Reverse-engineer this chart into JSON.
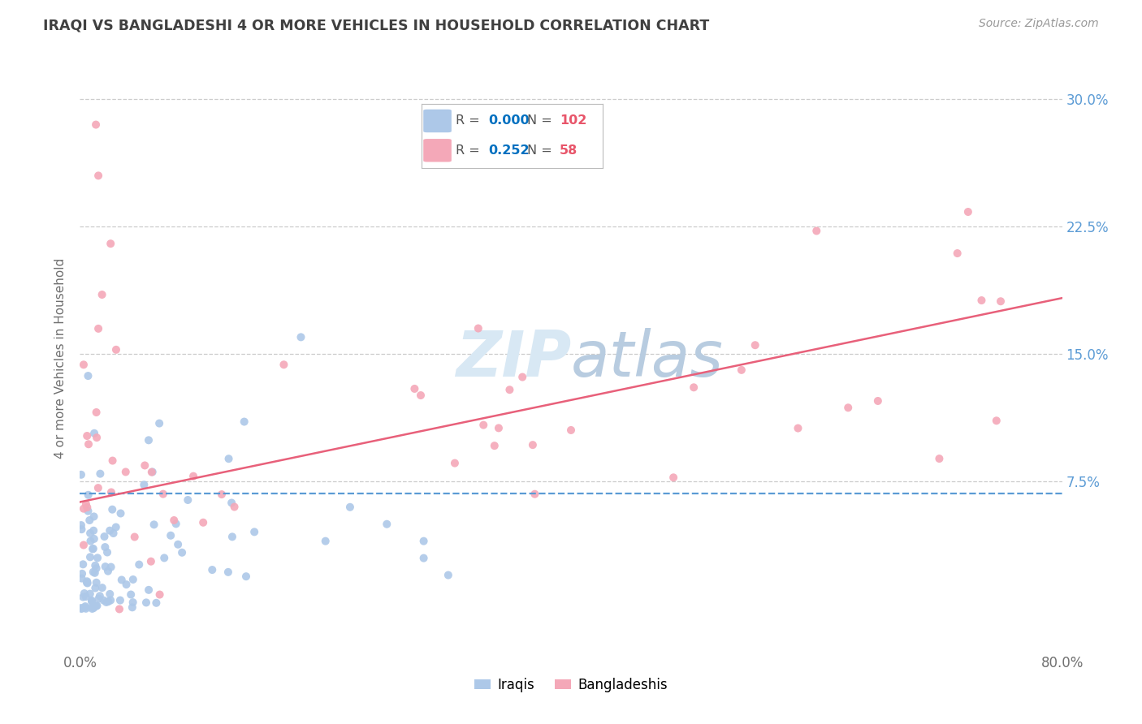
{
  "title": "IRAQI VS BANGLADESHI 4 OR MORE VEHICLES IN HOUSEHOLD CORRELATION CHART",
  "source": "Source: ZipAtlas.com",
  "ylabel": "4 or more Vehicles in Household",
  "xlim": [
    0.0,
    0.8
  ],
  "ylim": [
    -0.025,
    0.32
  ],
  "yticks": [
    0.075,
    0.15,
    0.225,
    0.3
  ],
  "yticklabels": [
    "7.5%",
    "15.0%",
    "22.5%",
    "30.0%"
  ],
  "xtick_positions": [
    0.0,
    0.1,
    0.2,
    0.3,
    0.4,
    0.5,
    0.6,
    0.7,
    0.8
  ],
  "xticklabels": [
    "0.0%",
    "",
    "",
    "",
    "",
    "",
    "",
    "",
    "80.0%"
  ],
  "legend_R_iraqi": "0.000",
  "legend_N_iraqi": "102",
  "legend_R_bangladeshi": "0.252",
  "legend_N_bangladeshi": "58",
  "iraqi_color": "#adc8e8",
  "bangladeshi_color": "#f4a8b8",
  "iraqi_line_color": "#5b9bd5",
  "bangladeshi_line_color": "#e8607a",
  "legend_color_R": "#0070c0",
  "legend_color_N": "#e8556a",
  "legend_text_color": "#555555",
  "watermark_color": "#d8e8f4",
  "background_color": "#ffffff",
  "grid_color": "#cccccc",
  "title_color": "#404040",
  "axis_label_color": "#707070",
  "right_tick_color": "#5b9bd5",
  "iraqi_line_y0": 0.068,
  "iraqi_line_y1": 0.068,
  "bangladeshi_line_y0": 0.063,
  "bangladeshi_line_y1": 0.183
}
